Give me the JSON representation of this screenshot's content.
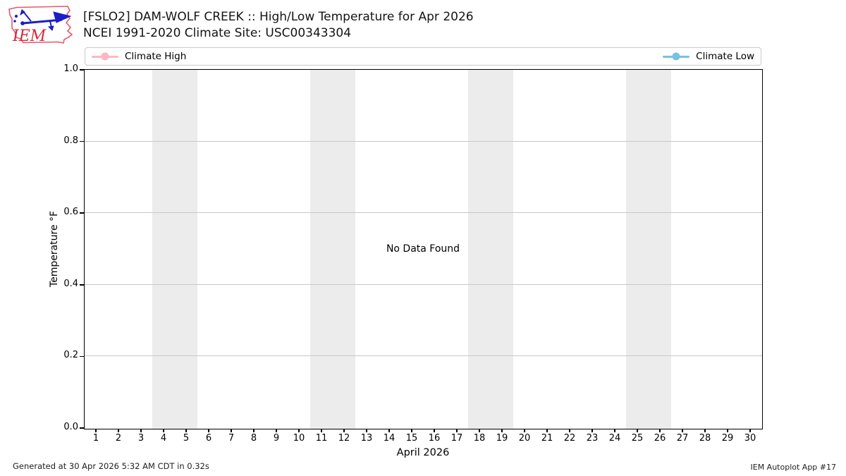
{
  "header": {
    "title_line1": "[FSLO2] DAM-WOLF CREEK :: High/Low Temperature for Apr 2026",
    "title_line2": "NCEI 1991-2020 Climate Site: USC00343304",
    "logo_text": "IEM"
  },
  "legend": {
    "items": [
      {
        "label": "Climate High",
        "color": "#ffb6c1"
      },
      {
        "label": "Climate Low",
        "color": "#76c2e2"
      }
    ]
  },
  "chart_data": {
    "type": "line",
    "title": "[FSLO2] DAM-WOLF CREEK :: High/Low Temperature for Apr 2026",
    "subtitle": "NCEI 1991-2020 Climate Site: USC00343304",
    "xlabel": "April 2026",
    "ylabel": "Temperature °F",
    "xlim": [
      0.5,
      30.5
    ],
    "ylim": [
      0.0,
      1.0
    ],
    "x_ticks": [
      1,
      2,
      3,
      4,
      5,
      6,
      7,
      8,
      9,
      10,
      11,
      12,
      13,
      14,
      15,
      16,
      17,
      18,
      19,
      20,
      21,
      22,
      23,
      24,
      25,
      26,
      27,
      28,
      29,
      30
    ],
    "y_ticks": [
      0.0,
      0.2,
      0.4,
      0.6,
      0.8,
      1.0
    ],
    "y_tick_labels": [
      "0.0",
      "0.2",
      "0.4",
      "0.6",
      "0.8",
      "1.0"
    ],
    "series": [
      {
        "name": "Climate High",
        "color": "#ffb6c1",
        "values": []
      },
      {
        "name": "Climate Low",
        "color": "#76c2e2",
        "values": []
      }
    ],
    "no_data_message": "No Data Found",
    "weekend_bands": [
      [
        3.5,
        5.5
      ],
      [
        10.5,
        12.5
      ],
      [
        17.5,
        19.5
      ],
      [
        24.5,
        26.5
      ]
    ],
    "band_color": "#ececec",
    "grid_color": "#c8c8c8",
    "grid": "horizontal-only",
    "legend_position": "top-expanded"
  },
  "footer": {
    "left": "Generated at 30 Apr 2026 5:32 AM CDT in 0.32s",
    "right": "IEM Autoplot App #17"
  }
}
